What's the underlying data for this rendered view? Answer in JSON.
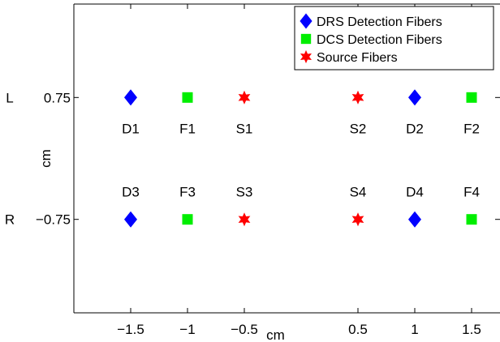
{
  "chart_data": {
    "type": "scatter",
    "xlabel": "cm",
    "ylabel": "cm",
    "xlim": [
      -2,
      1.75
    ],
    "ylim": [
      -1.9,
      1.9
    ],
    "x_ticks": [
      {
        "value": -1.5,
        "label": "−1.5"
      },
      {
        "value": -1,
        "label": "−1"
      },
      {
        "value": -0.5,
        "label": "−0.5"
      },
      {
        "value": 0.5,
        "label": "0.5"
      },
      {
        "value": 1,
        "label": "1"
      },
      {
        "value": 1.5,
        "label": "1.5"
      }
    ],
    "y_ticks": [
      {
        "value": 0.75,
        "label": "0.75"
      },
      {
        "value": -0.75,
        "label": "−0.75"
      }
    ],
    "row_labels": [
      {
        "value": 0.75,
        "label": "L"
      },
      {
        "value": -0.75,
        "label": "R"
      }
    ],
    "legend_position": "top-right",
    "series": [
      {
        "name": "DRS Detection Fibers",
        "marker": "diamond",
        "color": "#0000ff",
        "points": [
          {
            "x": -1.5,
            "y": 0.75,
            "label": "D1",
            "label_pos": "below"
          },
          {
            "x": 1,
            "y": 0.75,
            "label": "D2",
            "label_pos": "below"
          },
          {
            "x": -1.5,
            "y": -0.75,
            "label": "D3",
            "label_pos": "above"
          },
          {
            "x": 1,
            "y": -0.75,
            "label": "D4",
            "label_pos": "above"
          }
        ]
      },
      {
        "name": "DCS Detection Fibers",
        "marker": "square",
        "color": "#00ee00",
        "points": [
          {
            "x": -1,
            "y": 0.75,
            "label": "F1",
            "label_pos": "below"
          },
          {
            "x": 1.5,
            "y": 0.75,
            "label": "F2",
            "label_pos": "below"
          },
          {
            "x": -1,
            "y": -0.75,
            "label": "F3",
            "label_pos": "above"
          },
          {
            "x": 1.5,
            "y": -0.75,
            "label": "F4",
            "label_pos": "above"
          }
        ]
      },
      {
        "name": "Source Fibers",
        "marker": "hexagram",
        "color": "#ff0000",
        "points": [
          {
            "x": -0.5,
            "y": 0.75,
            "label": "S1",
            "label_pos": "below"
          },
          {
            "x": 0.5,
            "y": 0.75,
            "label": "S2",
            "label_pos": "below"
          },
          {
            "x": -0.5,
            "y": -0.75,
            "label": "S3",
            "label_pos": "above"
          },
          {
            "x": 0.5,
            "y": -0.75,
            "label": "S4",
            "label_pos": "above"
          }
        ]
      }
    ]
  }
}
